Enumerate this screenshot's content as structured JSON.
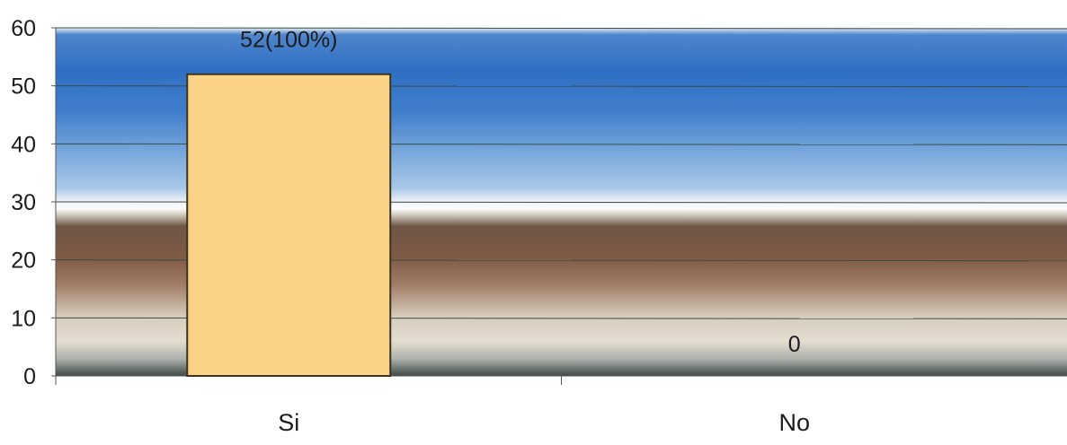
{
  "chart_data": {
    "type": "bar",
    "categories": [
      "Si",
      "No"
    ],
    "values": [
      52,
      0
    ],
    "data_labels": [
      "52(100%)",
      "0"
    ],
    "ylim": [
      0,
      60
    ],
    "yticks": [
      "0",
      "10",
      "20",
      "30",
      "40",
      "50",
      "60"
    ],
    "grid": true,
    "legend": "none",
    "colors": {
      "bar_fill": "#fad389",
      "bar_stroke": "#3a3320",
      "gridline": "#3d4a44",
      "axis": "#555555",
      "sky_top": "#2f6fc4",
      "sky_mid": "#9fc2e6",
      "earth_brown": "#7e5a45",
      "earth_light": "#ddd6c8",
      "ground_dark": "#3f4a46"
    }
  }
}
